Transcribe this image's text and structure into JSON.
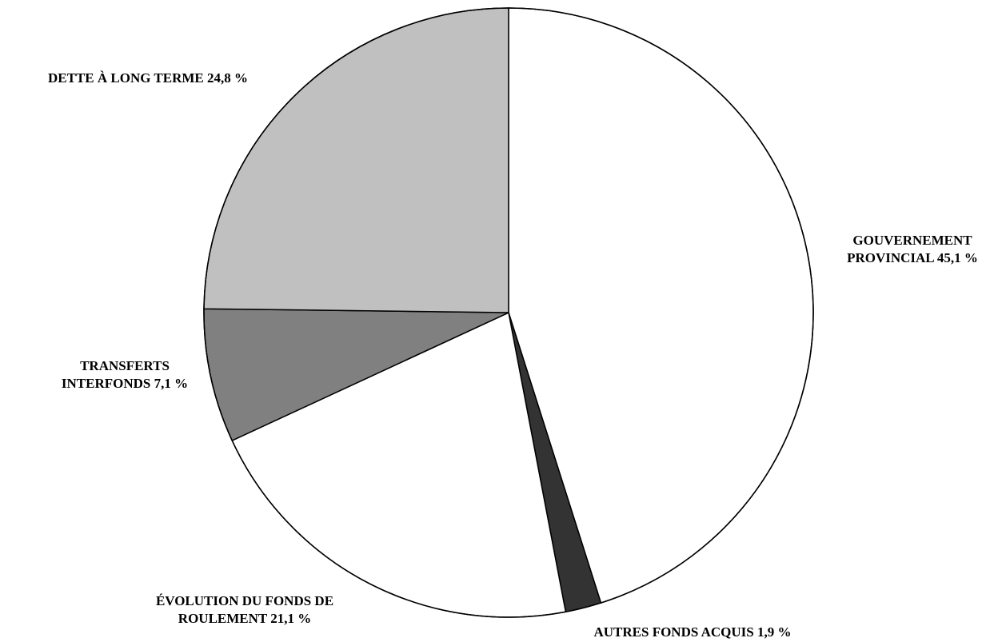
{
  "chart_data": {
    "type": "pie",
    "slices": [
      {
        "label_lines": [
          "GOUVERNEMENT",
          "PROVINCIAL 45,1 %"
        ],
        "value": 45.1,
        "color": "#ffffff"
      },
      {
        "label_lines": [
          "AUTRES FONDS ACQUIS 1,9 %"
        ],
        "value": 1.9,
        "color": "#333333"
      },
      {
        "label_lines": [
          "ÉVOLUTION DU FONDS DE",
          "ROULEMENT 21,1 %"
        ],
        "value": 21.1,
        "color": "#ffffff"
      },
      {
        "label_lines": [
          "TRANSFERTS",
          "INTERFONDS 7,1 %"
        ],
        "value": 7.1,
        "color": "#808080"
      },
      {
        "label_lines": [
          "DETTE À LONG TERME 24,8 %"
        ],
        "value": 24.8,
        "color": "#c0c0c0"
      }
    ],
    "start": "12 o'clock",
    "direction": "clockwise"
  }
}
